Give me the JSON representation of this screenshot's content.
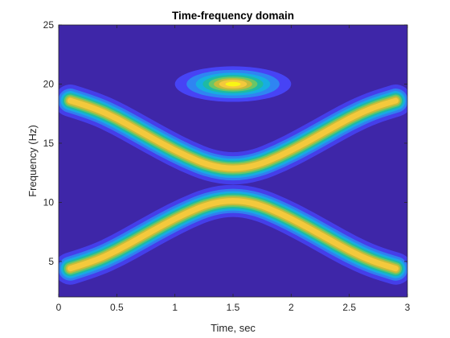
{
  "chart_data": {
    "type": "heatmap",
    "title": "Time-frequency domain",
    "xlabel": "Time, sec",
    "ylabel": "Frequency (Hz)",
    "xlim": [
      0,
      3
    ],
    "ylim": [
      2,
      25
    ],
    "xticks": [
      "0",
      "0.5",
      "1",
      "1.5",
      "2",
      "2.5",
      "3"
    ],
    "yticks": [
      "5",
      "10",
      "15",
      "20",
      "25"
    ],
    "colormap": [
      "#3e26a8",
      "#4743f5",
      "#2f85f2",
      "#17aee1",
      "#1ebba3",
      "#6bc666",
      "#c4bc3b",
      "#f4c93c",
      "#f9f614"
    ],
    "background_color": "#3e26a8",
    "components": [
      {
        "name": "upper-chirp",
        "t": [
          0.1,
          0.3,
          0.5,
          0.7,
          0.9,
          1.1,
          1.3,
          1.5,
          1.7,
          1.9,
          2.1,
          2.3,
          2.5,
          2.7,
          2.9
        ],
        "f": [
          18.6,
          18.0,
          17.1,
          16.0,
          14.9,
          13.9,
          13.1,
          12.8,
          13.1,
          13.9,
          14.9,
          16.0,
          17.1,
          18.0,
          18.6
        ]
      },
      {
        "name": "lower-chirp",
        "t": [
          0.1,
          0.3,
          0.5,
          0.7,
          0.9,
          1.1,
          1.3,
          1.5,
          1.7,
          1.9,
          2.1,
          2.3,
          2.5,
          2.7,
          2.9
        ],
        "f": [
          4.4,
          5.0,
          5.9,
          7.0,
          8.1,
          9.1,
          9.9,
          10.2,
          9.9,
          9.1,
          8.1,
          7.0,
          5.9,
          5.0,
          4.4
        ]
      },
      {
        "name": "tone-burst",
        "t_center": 1.5,
        "f_center": 20.0,
        "t_spread": 0.5,
        "f_spread": 1.5
      }
    ],
    "grid": false,
    "legend": "none"
  }
}
